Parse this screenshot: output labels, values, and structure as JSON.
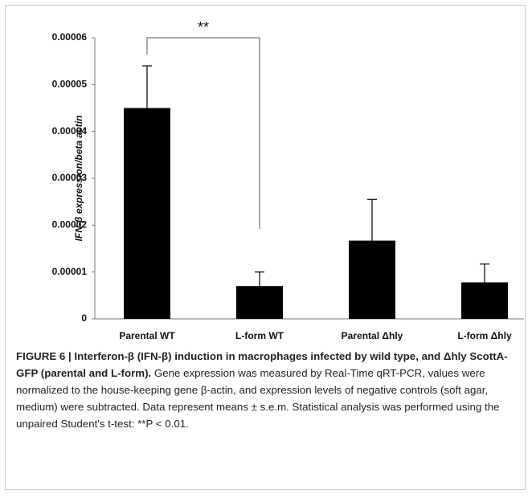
{
  "chart_data": {
    "type": "bar",
    "ylabel": "IFN-β expression/beta actin",
    "categories": [
      "Parental WT",
      "L-form WT",
      "Parental Δhly",
      "L-form Δhly"
    ],
    "values": [
      4.5e-05,
      7e-06,
      1.67e-05,
      7.8e-06
    ],
    "errors": [
      9e-06,
      3e-06,
      8.8e-06,
      3.9e-06
    ],
    "color": "#000000",
    "ylim": [
      0,
      6e-05
    ],
    "yticks": [
      0,
      1e-05,
      2e-05,
      3e-05,
      4e-05,
      5e-05,
      6e-05
    ],
    "grid": false,
    "annotation": "**"
  },
  "caption": {
    "title": "FIGURE 6 | Interferon-β (IFN-β) induction in macrophages infected by wild type, and Δhly ScottA-GFP (parental and L-form).",
    "text": "Gene expression was measured by Real-Time qRT-PCR, values were normalized to the house-keeping gene β-actin, and expression levels of negative controls (soft agar, medium) were subtracted. Data represent means ± s.e.m. Statistical analysis was performed using the unpaired Student's t-test: **P < 0.01."
  }
}
